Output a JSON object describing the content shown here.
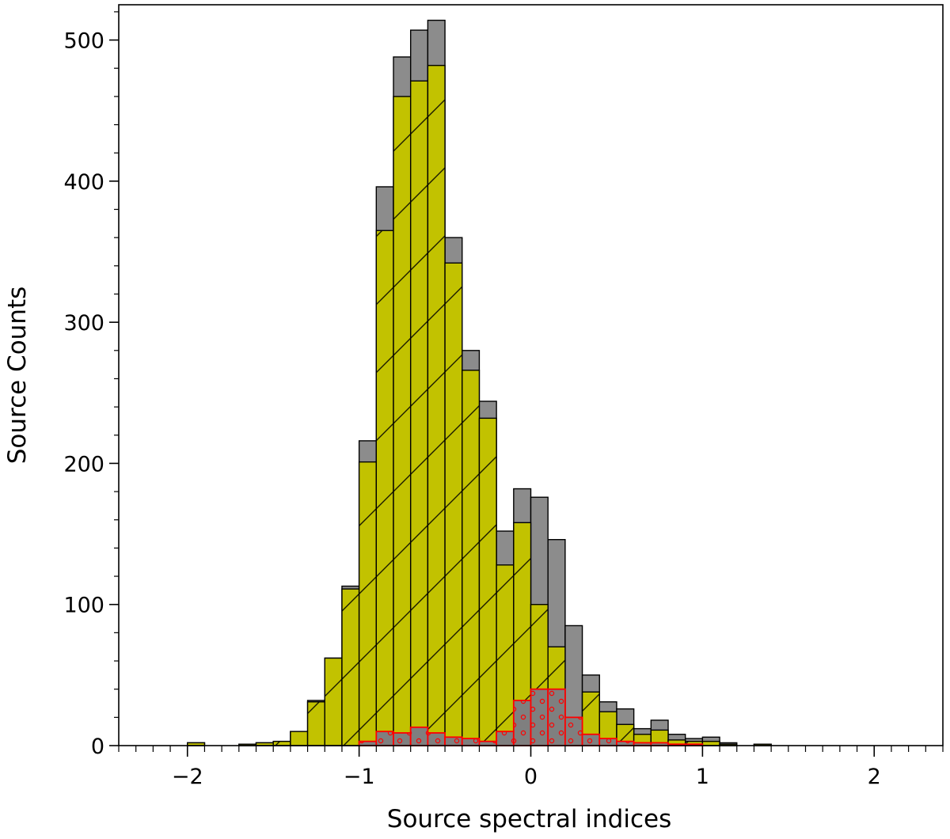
{
  "chart_data": {
    "type": "bar",
    "xlabel": "Source spectral indices",
    "ylabel": "Source Counts",
    "xlim": [
      -2.4,
      2.4
    ],
    "ylim": [
      0,
      525
    ],
    "bin_width": 0.1,
    "grid": false,
    "legend": "none",
    "x_ticks": [
      -2,
      -1,
      0,
      1,
      2
    ],
    "x_tick_labels": [
      "−2",
      "−1",
      "0",
      "1",
      "2"
    ],
    "y_ticks": [
      0,
      100,
      200,
      300,
      400,
      500
    ],
    "y_tick_labels": [
      "0",
      "100",
      "200",
      "300",
      "400",
      "500"
    ],
    "bin_starts": [
      -2.0,
      -1.8,
      -1.7,
      -1.6,
      -1.5,
      -1.4,
      -1.3,
      -1.2,
      -1.1,
      -1.0,
      -0.9,
      -0.8,
      -0.7,
      -0.6,
      -0.5,
      -0.4,
      -0.3,
      -0.2,
      -0.1,
      0.0,
      0.1,
      0.2,
      0.3,
      0.4,
      0.5,
      0.6,
      0.7,
      0.8,
      0.9,
      1.0,
      1.1,
      1.3
    ],
    "series": [
      {
        "values": [
          2,
          0,
          1,
          2,
          3,
          10,
          32,
          62,
          113,
          216,
          396,
          488,
          507,
          514,
          360,
          280,
          244,
          152,
          182,
          176,
          146,
          85,
          50,
          31,
          26,
          12,
          18,
          8,
          5,
          6,
          2,
          1
        ],
        "color": "#8c8c8c"
      },
      {
        "values": [
          2,
          0,
          1,
          2,
          3,
          10,
          31,
          62,
          111,
          201,
          365,
          460,
          471,
          482,
          342,
          266,
          232,
          128,
          158,
          100,
          70,
          12,
          38,
          24,
          15,
          8,
          11,
          4,
          3,
          3,
          1,
          1
        ],
        "color": "#c2c200",
        "hatch": "diagonal"
      },
      {
        "values": [
          0,
          0,
          0,
          0,
          0,
          0,
          0,
          0,
          0,
          3,
          10,
          9,
          13,
          9,
          6,
          5,
          3,
          10,
          32,
          40,
          40,
          20,
          8,
          5,
          3,
          2,
          2,
          1,
          1,
          0,
          0,
          0
        ],
        "color": "#ff0000",
        "hatch": "dots"
      }
    ]
  }
}
